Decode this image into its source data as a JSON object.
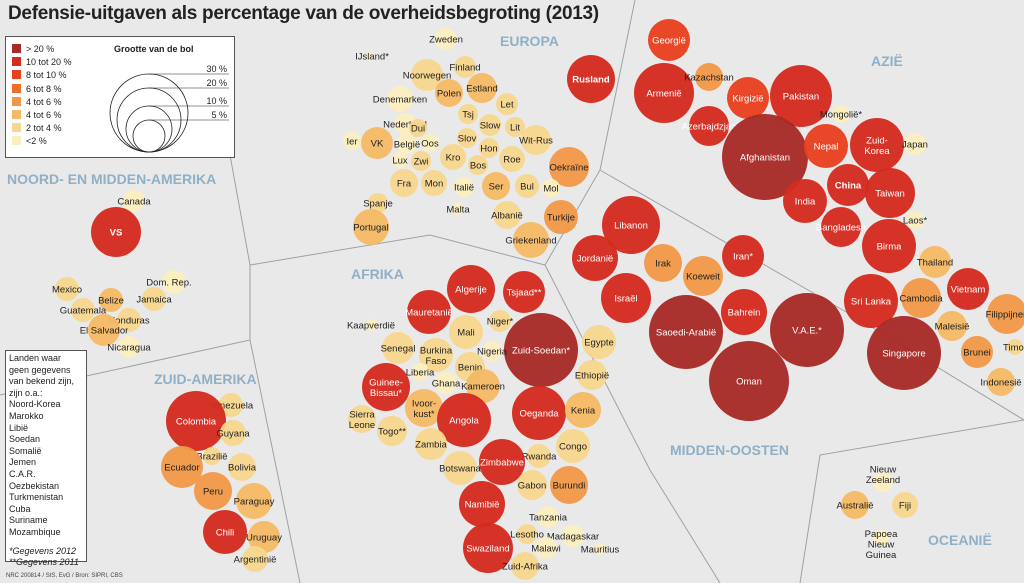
{
  "title": "Defensie-uitgaven als percentage van de overheidsbegroting (2013)",
  "colors": {
    "c20": "#a72a27",
    "c10": "#d42b1f",
    "c8": "#e8411f",
    "c6": "#ee6f2a",
    "c4a": "#f09848",
    "c4b": "#f4b965",
    "c2": "#f7d68e",
    "c0": "#fbeebf",
    "background": "#e9e9e9"
  },
  "legend": {
    "items": [
      {
        "label": "> 20 %",
        "color": "#a72a27"
      },
      {
        "label": "10 tot 20 %",
        "color": "#d42b1f"
      },
      {
        "label": "8 tot 10 %",
        "color": "#e8411f"
      },
      {
        "label": "6 tot 8 %",
        "color": "#ee6f2a"
      },
      {
        "label": "4 tot 6 %",
        "color": "#f09848"
      },
      {
        "label": "4 tot 6 %",
        "color": "#f4b965"
      },
      {
        "label": "2 tot 4 %",
        "color": "#f7d68e"
      },
      {
        "label": "<2 %",
        "color": "#fbeebf"
      }
    ],
    "size_title": "Grootte van de bol",
    "size_labels": [
      "30 %",
      "20 %",
      "10 %",
      "5 %"
    ]
  },
  "regions": {
    "europa": "EUROPA",
    "azie": "AZIË",
    "noord_midden_amerika": "NOORD- EN MIDDEN-AMERIKA",
    "afrika": "AFRIKA",
    "zuid_amerika": "ZUID-AMERIKA",
    "midden_oosten": "MIDDEN-OOSTEN",
    "oceanie": "OCEANIË"
  },
  "notes": {
    "lines": [
      "Landen waar",
      "geen gegevens",
      "van bekend zijn,",
      "zijn o.a.:",
      "Noord-Korea",
      "Marokko",
      "Libië",
      "Soedan",
      "Somalië",
      "Jemen",
      "C.A.R.",
      "Oezbekistan",
      "Turkmenistan",
      "Cuba",
      "Suriname",
      "Mozambique"
    ],
    "footnote1": "*Gegevens 2012",
    "footnote2": "**Gegevens 2011"
  },
  "source": "NRC 200814 / StS, EvG / Bron: SIPRI, CBS",
  "bubbles": [
    {
      "name": "Rusland",
      "c": "c10",
      "bold": true
    },
    {
      "name": "Georgië",
      "c": "c8"
    },
    {
      "name": "Armenië",
      "c": "c10"
    },
    {
      "name": "Kazachstan",
      "c": "c4a"
    },
    {
      "name": "Kirgizië",
      "c": "c8"
    },
    {
      "name": "Pakistan",
      "c": "c10"
    },
    {
      "name": "Azerbajdzjan",
      "c": "c10"
    },
    {
      "name": "Mongolië*",
      "c": "c0"
    },
    {
      "name": "Afghanistan",
      "c": "c20"
    },
    {
      "name": "Nepal",
      "c": "c8"
    },
    {
      "name": "Zuid-Korea",
      "c": "c10"
    },
    {
      "name": "Japan",
      "c": "c0"
    },
    {
      "name": "China",
      "c": "c10",
      "bold": true
    },
    {
      "name": "India",
      "c": "c10"
    },
    {
      "name": "Taiwan",
      "c": "c10"
    },
    {
      "name": "Bangladesh",
      "c": "c10"
    },
    {
      "name": "Laos*",
      "c": "c0"
    },
    {
      "name": "Birma",
      "c": "c10"
    },
    {
      "name": "Thailand",
      "c": "c4b"
    },
    {
      "name": "Vietnam",
      "c": "c10"
    },
    {
      "name": "Sri Lanka",
      "c": "c10"
    },
    {
      "name": "Cambodia",
      "c": "c4a"
    },
    {
      "name": "Filippijnen",
      "c": "c4a"
    },
    {
      "name": "Maleisië",
      "c": "c4b"
    },
    {
      "name": "Singapore",
      "c": "c20"
    },
    {
      "name": "Brunei",
      "c": "c4a"
    },
    {
      "name": "Timor",
      "c": "c2"
    },
    {
      "name": "Indonesië",
      "c": "c4b"
    },
    {
      "name": "Libanon",
      "c": "c10"
    },
    {
      "name": "Jordanië",
      "c": "c10"
    },
    {
      "name": "Irak",
      "c": "c4a"
    },
    {
      "name": "Iran*",
      "c": "c10"
    },
    {
      "name": "Koeweit",
      "c": "c4a"
    },
    {
      "name": "Israël",
      "c": "c10"
    },
    {
      "name": "Bahrein",
      "c": "c10"
    },
    {
      "name": "Saoedi-Arabië",
      "c": "c20"
    },
    {
      "name": "V.A.E.*",
      "c": "c20"
    },
    {
      "name": "Oman",
      "c": "c20"
    },
    {
      "name": "IJsland*",
      "c": "c0"
    },
    {
      "name": "Zweden",
      "c": "c0"
    },
    {
      "name": "Noorwegen",
      "c": "c2"
    },
    {
      "name": "Finland",
      "c": "c2"
    },
    {
      "name": "Polen",
      "c": "c4b"
    },
    {
      "name": "Estland",
      "c": "c4b"
    },
    {
      "name": "Denemarken",
      "c": "c0"
    },
    {
      "name": "Let",
      "c": "c2"
    },
    {
      "name": "Nederland",
      "c": "c0"
    },
    {
      "name": "Lit",
      "c": "c2"
    },
    {
      "name": "Ier",
      "c": "c0"
    },
    {
      "name": "VK",
      "c": "c4b"
    },
    {
      "name": "België",
      "c": "c0"
    },
    {
      "name": "Dui",
      "c": "c2"
    },
    {
      "name": "Tsj",
      "c": "c2"
    },
    {
      "name": "Slow",
      "c": "c2"
    },
    {
      "name": "Oos",
      "c": "c0"
    },
    {
      "name": "Slov",
      "c": "c2"
    },
    {
      "name": "Wit-Rus",
      "c": "c2"
    },
    {
      "name": "Lux",
      "c": "c0"
    },
    {
      "name": "Zwi",
      "c": "c2"
    },
    {
      "name": "Kro",
      "c": "c2"
    },
    {
      "name": "Hon",
      "c": "c2"
    },
    {
      "name": "Bos",
      "c": "c2"
    },
    {
      "name": "Roe",
      "c": "c2"
    },
    {
      "name": "Oekraïne",
      "c": "c4a"
    },
    {
      "name": "Fra",
      "c": "c2"
    },
    {
      "name": "Mon",
      "c": "c2"
    },
    {
      "name": "Italië",
      "c": "c0"
    },
    {
      "name": "Ser",
      "c": "c4b"
    },
    {
      "name": "Bul",
      "c": "c2"
    },
    {
      "name": "Mol",
      "c": "c0"
    },
    {
      "name": "Spanje",
      "c": "c2"
    },
    {
      "name": "Malta",
      "c": "c0"
    },
    {
      "name": "Albanië",
      "c": "c2"
    },
    {
      "name": "Turkije",
      "c": "c4a"
    },
    {
      "name": "Portugal",
      "c": "c4b"
    },
    {
      "name": "Griekenland",
      "c": "c4b"
    },
    {
      "name": "Canada",
      "c": "c0"
    },
    {
      "name": "VS",
      "c": "c10",
      "bold": true
    },
    {
      "name": "Mexico",
      "c": "c2"
    },
    {
      "name": "Dom. Rep.",
      "c": "c0"
    },
    {
      "name": "Belize",
      "c": "c4b"
    },
    {
      "name": "Jamaica",
      "c": "c2"
    },
    {
      "name": "Guatemala",
      "c": "c2"
    },
    {
      "name": "Honduras",
      "c": "c2"
    },
    {
      "name": "El Salvador",
      "c": "c4b"
    },
    {
      "name": "Nicaragua",
      "c": "c0"
    },
    {
      "name": "Venezuela",
      "c": "c2"
    },
    {
      "name": "Colombia",
      "c": "c10"
    },
    {
      "name": "Guyana",
      "c": "c2"
    },
    {
      "name": "Brazilië",
      "c": "c2"
    },
    {
      "name": "Ecuador",
      "c": "c4a"
    },
    {
      "name": "Bolivia",
      "c": "c2"
    },
    {
      "name": "Peru",
      "c": "c4a"
    },
    {
      "name": "Paraguay",
      "c": "c4b"
    },
    {
      "name": "Chili",
      "c": "c10"
    },
    {
      "name": "Uruguay",
      "c": "c4b"
    },
    {
      "name": "Argentinië",
      "c": "c2"
    },
    {
      "name": "Algerije",
      "c": "c10"
    },
    {
      "name": "Tsjaad**",
      "c": "c10"
    },
    {
      "name": "Mauretanië",
      "c": "c10"
    },
    {
      "name": "Niger*",
      "c": "c2"
    },
    {
      "name": "Kaapverdië",
      "c": "c0"
    },
    {
      "name": "Mali",
      "c": "c2"
    },
    {
      "name": "Zuid-Soedan*",
      "c": "c20"
    },
    {
      "name": "Senegal",
      "c": "c2"
    },
    {
      "name": "Burkina Faso",
      "c": "c2"
    },
    {
      "name": "Nigeria",
      "c": "c0"
    },
    {
      "name": "Egypte",
      "c": "c2"
    },
    {
      "name": "Liberia",
      "c": "c0"
    },
    {
      "name": "Benin",
      "c": "c2"
    },
    {
      "name": "Ethiopië",
      "c": "c2"
    },
    {
      "name": "Guinee-Bissau*",
      "c": "c10"
    },
    {
      "name": "Ghana",
      "c": "c0"
    },
    {
      "name": "Kameroen",
      "c": "c4b"
    },
    {
      "name": "Ivoorkust*",
      "c": "c4b"
    },
    {
      "name": "Sierra Leone",
      "c": "c2"
    },
    {
      "name": "Togo**",
      "c": "c2"
    },
    {
      "name": "Angola",
      "c": "c10"
    },
    {
      "name": "Oeganda",
      "c": "c10"
    },
    {
      "name": "Kenia",
      "c": "c4b"
    },
    {
      "name": "Zambia",
      "c": "c2"
    },
    {
      "name": "Congo",
      "c": "c2"
    },
    {
      "name": "Rwanda",
      "c": "c2"
    },
    {
      "name": "Zimbabwe",
      "c": "c10"
    },
    {
      "name": "Botswana",
      "c": "c2"
    },
    {
      "name": "Gabon",
      "c": "c2"
    },
    {
      "name": "Burundi",
      "c": "c4a"
    },
    {
      "name": "Namibië",
      "c": "c10"
    },
    {
      "name": "Tanzania",
      "c": "c0"
    },
    {
      "name": "Lesotho",
      "c": "c2"
    },
    {
      "name": "Madagaskar",
      "c": "c0"
    },
    {
      "name": "Swaziland",
      "c": "c10"
    },
    {
      "name": "Malawi",
      "c": "c0"
    },
    {
      "name": "Mauritius",
      "c": "c0"
    },
    {
      "name": "Zuid-Afrika",
      "c": "c2"
    },
    {
      "name": "Nieuw Zeeland",
      "c": "c0"
    },
    {
      "name": "Australië",
      "c": "c4b"
    },
    {
      "name": "Fiji",
      "c": "c2"
    },
    {
      "name": "Papoea Nieuw Guinea",
      "c": "c0"
    }
  ]
}
